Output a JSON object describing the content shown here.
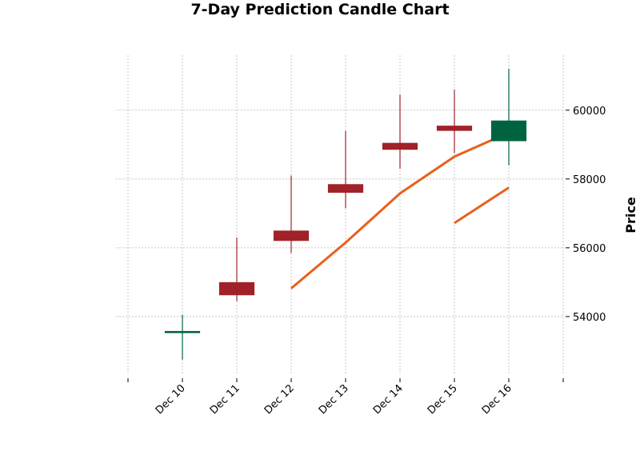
{
  "chart_data": {
    "type": "candlestick",
    "title": "7-Day Prediction Candle Chart",
    "xlabel": "",
    "ylabel": "Price",
    "categories": [
      "Dec 10",
      "Dec 11",
      "Dec 12",
      "Dec 13",
      "Dec 14",
      "Dec 15",
      "Dec 16"
    ],
    "y_ticks": [
      54000,
      56000,
      58000,
      60000
    ],
    "y_tick_labels": [
      "54000",
      "56000",
      "58000",
      "60000"
    ],
    "ylim": [
      52300,
      61600
    ],
    "xlim": [
      -1,
      7
    ],
    "grid": true,
    "y_axis_side": "right",
    "candles": [
      {
        "date": "Dec 10",
        "open": 53520,
        "high": 54050,
        "low": 52750,
        "close": 53580
      },
      {
        "date": "Dec 11",
        "open": 55000,
        "high": 56300,
        "low": 54450,
        "close": 54620
      },
      {
        "date": "Dec 12",
        "open": 56500,
        "high": 58100,
        "low": 55850,
        "close": 56200
      },
      {
        "date": "Dec 13",
        "open": 57850,
        "high": 59400,
        "low": 57150,
        "close": 57600
      },
      {
        "date": "Dec 14",
        "open": 59050,
        "high": 60450,
        "low": 58300,
        "close": 58850
      },
      {
        "date": "Dec 15",
        "open": 59550,
        "high": 60600,
        "low": 58750,
        "close": 59400
      },
      {
        "date": "Dec 16",
        "open": 59100,
        "high": 61200,
        "low": 58400,
        "close": 59700
      }
    ],
    "series": [
      {
        "type": "line",
        "x": [
          "Dec 12",
          "Dec 13",
          "Dec 14",
          "Dec 15",
          "Dec 16"
        ],
        "values": [
          54820,
          56150,
          57580,
          58650,
          59350
        ]
      },
      {
        "type": "line",
        "x": [
          "Dec 15",
          "Dec 16"
        ],
        "values": [
          56720,
          57750
        ]
      }
    ]
  },
  "colors": {
    "up": "#006340",
    "down": "#a02128",
    "line": "#e8601c",
    "grid": "#b0b0b0",
    "axis": "#000000"
  }
}
